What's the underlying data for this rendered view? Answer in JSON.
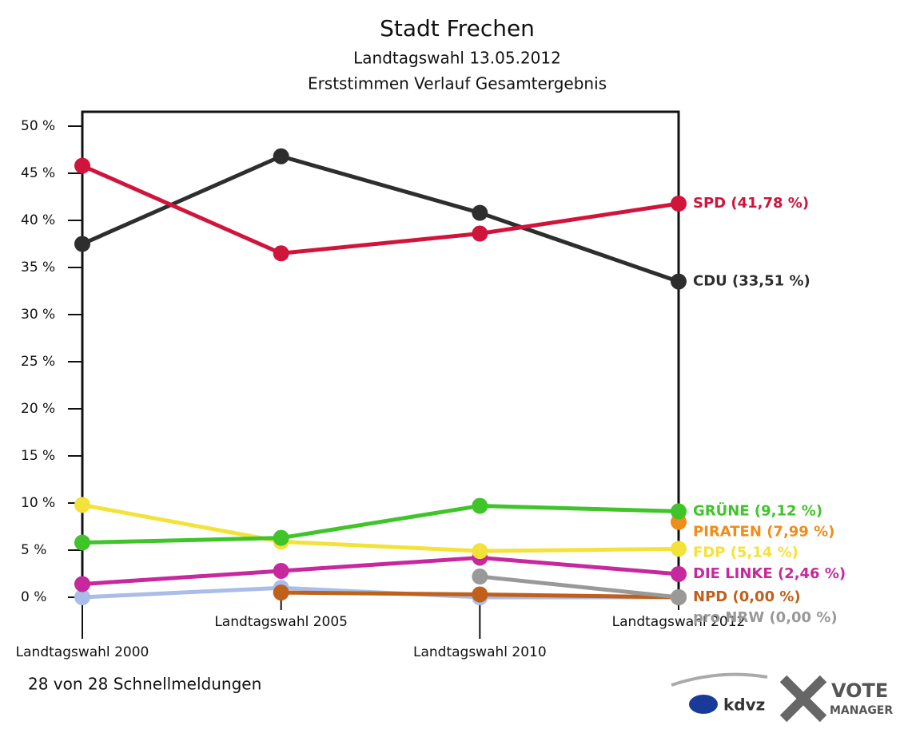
{
  "chart_data": {
    "type": "line",
    "title": "Stadt Frechen",
    "subtitle": "Landtagswahl 13.05.2012",
    "subtitle2": "Erststimmen Verlauf Gesamtergebnis",
    "categories": [
      "Landtagswahl 2000",
      "Landtagswahl 2005",
      "Landtagswahl 2010",
      "Landtagswahl 2012"
    ],
    "ylim": [
      0,
      50
    ],
    "yticks": [
      {
        "value": 0,
        "label": "0 %"
      },
      {
        "value": 5,
        "label": "5 %"
      },
      {
        "value": 10,
        "label": "10 %"
      },
      {
        "value": 15,
        "label": "15 %"
      },
      {
        "value": 20,
        "label": "20 %"
      },
      {
        "value": 25,
        "label": "25 %"
      },
      {
        "value": 30,
        "label": "30 %"
      },
      {
        "value": 35,
        "label": "35 %"
      },
      {
        "value": 40,
        "label": "40 %"
      },
      {
        "value": 45,
        "label": "45 %"
      },
      {
        "value": 50,
        "label": "50 %"
      }
    ],
    "series": [
      {
        "values": [
          0,
          1.0,
          0,
          0
        ],
        "color": "#a9bde8"
      },
      {
        "name": "NPD (0,00 %)",
        "color": "#c0601a",
        "values": [
          null,
          0.5,
          0.3,
          0
        ]
      },
      {
        "name": "pro NRW (0,00 %)",
        "color": "#999999",
        "values": [
          null,
          null,
          2.2,
          0
        ]
      },
      {
        "name": "DIE LINKE (2,46 %)",
        "color": "#c8289e",
        "values": [
          1.4,
          2.8,
          4.2,
          2.46
        ]
      },
      {
        "name": "FDP (5,14 %)",
        "color": "#f3e23a",
        "values": [
          9.8,
          5.9,
          4.9,
          5.14
        ]
      },
      {
        "name": "PIRATEN (7,99 %)",
        "color": "#f08c1a",
        "values": [
          null,
          null,
          null,
          7.99
        ]
      },
      {
        "name": "GRÜNE (9,12 %)",
        "color": "#3fc42a",
        "values": [
          5.8,
          6.3,
          9.7,
          9.12
        ]
      },
      {
        "name": "CDU (33,51 %)",
        "color": "#2e2e2e",
        "values": [
          37.5,
          46.8,
          40.8,
          33.51
        ]
      },
      {
        "name": "SPD (41,78 %)",
        "color": "#d0143c",
        "values": [
          45.8,
          36.5,
          38.6,
          41.78
        ]
      }
    ],
    "footer": "28 von 28 Schnellmeldungen",
    "logo1": "kdvz",
    "logo2": "VOTE",
    "logo3": "MANAGER"
  }
}
